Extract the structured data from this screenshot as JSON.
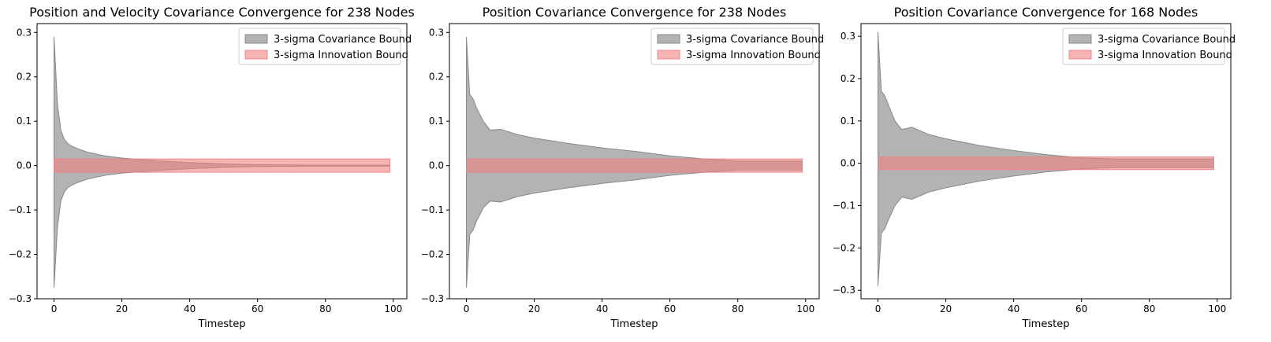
{
  "chart_data": [
    {
      "type": "area",
      "title": "Position and Velocity Covariance Convergence for 238 Nodes",
      "xlabel": "Timestep",
      "ylabel": "",
      "xlim": [
        -5,
        104
      ],
      "ylim": [
        -0.3,
        0.32
      ],
      "xticks": [
        "0",
        "20",
        "40",
        "60",
        "80",
        "100"
      ],
      "yticks": [
        "−0.3",
        "−0.2",
        "−0.1",
        "0.0",
        "0.1",
        "0.2",
        "0.3"
      ],
      "legend_position": "top-right",
      "series": [
        {
          "name": "3-sigma Covariance Bound",
          "color": "#808080",
          "x": [
            0,
            1,
            2,
            3,
            4,
            5,
            7,
            10,
            15,
            20,
            30,
            40,
            50,
            60,
            70,
            80,
            90,
            99
          ],
          "upper": [
            0.29,
            0.14,
            0.08,
            0.06,
            0.05,
            0.045,
            0.038,
            0.03,
            0.022,
            0.017,
            0.011,
            0.007,
            0.004,
            0.002,
            0.0015,
            0.001,
            0.001,
            0.001
          ],
          "lower": [
            -0.275,
            -0.14,
            -0.08,
            -0.06,
            -0.05,
            -0.045,
            -0.038,
            -0.03,
            -0.022,
            -0.017,
            -0.011,
            -0.007,
            -0.004,
            -0.002,
            -0.0015,
            -0.001,
            -0.001,
            -0.001
          ]
        },
        {
          "name": "3-sigma Innovation Bound",
          "color": "#f08080",
          "x": [
            0,
            99
          ],
          "upper": [
            0.015,
            0.015
          ],
          "lower": [
            -0.015,
            -0.015
          ]
        }
      ]
    },
    {
      "type": "area",
      "title": "Position Covariance Convergence for 238 Nodes",
      "xlabel": "Timestep",
      "ylabel": "",
      "xlim": [
        -5,
        104
      ],
      "ylim": [
        -0.3,
        0.32
      ],
      "xticks": [
        "0",
        "20",
        "40",
        "60",
        "80",
        "100"
      ],
      "yticks": [
        "−0.3",
        "−0.2",
        "−0.1",
        "0.0",
        "0.1",
        "0.2",
        "0.3"
      ],
      "legend_position": "top-right",
      "series": [
        {
          "name": "3-sigma Covariance Bound",
          "color": "#808080",
          "x": [
            0,
            1,
            2,
            3,
            5,
            7,
            10,
            13,
            15,
            20,
            30,
            40,
            50,
            60,
            70,
            80,
            90,
            99
          ],
          "upper": [
            0.29,
            0.16,
            0.15,
            0.13,
            0.1,
            0.08,
            0.082,
            0.075,
            0.07,
            0.062,
            0.05,
            0.04,
            0.032,
            0.022,
            0.015,
            0.01,
            0.01,
            0.01
          ],
          "lower": [
            -0.275,
            -0.155,
            -0.145,
            -0.125,
            -0.095,
            -0.08,
            -0.082,
            -0.075,
            -0.07,
            -0.062,
            -0.05,
            -0.04,
            -0.032,
            -0.022,
            -0.015,
            -0.01,
            -0.01,
            -0.01
          ]
        },
        {
          "name": "3-sigma Innovation Bound",
          "color": "#f08080",
          "x": [
            0,
            99
          ],
          "upper": [
            0.015,
            0.015
          ],
          "lower": [
            -0.015,
            -0.015
          ]
        }
      ]
    },
    {
      "type": "area",
      "title": "Position Covariance Convergence for 168 Nodes",
      "xlabel": "Timestep",
      "ylabel": "",
      "xlim": [
        -5,
        104
      ],
      "ylim": [
        -0.32,
        0.33
      ],
      "xticks": [
        "0",
        "20",
        "40",
        "60",
        "80",
        "100"
      ],
      "yticks": [
        "−0.3",
        "−0.2",
        "−0.1",
        "0.0",
        "0.1",
        "0.2",
        "0.3"
      ],
      "legend_position": "top-right",
      "series": [
        {
          "name": "3-sigma Covariance Bound",
          "color": "#808080",
          "x": [
            0,
            1,
            2,
            3,
            5,
            7,
            10,
            13,
            15,
            20,
            30,
            40,
            50,
            60,
            70,
            80,
            90,
            99
          ],
          "upper": [
            0.31,
            0.17,
            0.16,
            0.14,
            0.1,
            0.08,
            0.085,
            0.075,
            0.068,
            0.058,
            0.042,
            0.03,
            0.02,
            0.013,
            0.01,
            0.01,
            0.01,
            0.01
          ],
          "lower": [
            -0.29,
            -0.165,
            -0.155,
            -0.135,
            -0.1,
            -0.08,
            -0.085,
            -0.075,
            -0.068,
            -0.058,
            -0.042,
            -0.03,
            -0.02,
            -0.013,
            -0.01,
            -0.01,
            -0.01,
            -0.01
          ]
        },
        {
          "name": "3-sigma Innovation Bound",
          "color": "#f08080",
          "x": [
            0,
            99
          ],
          "upper": [
            0.015,
            0.015
          ],
          "lower": [
            -0.015,
            -0.015
          ]
        }
      ]
    }
  ]
}
